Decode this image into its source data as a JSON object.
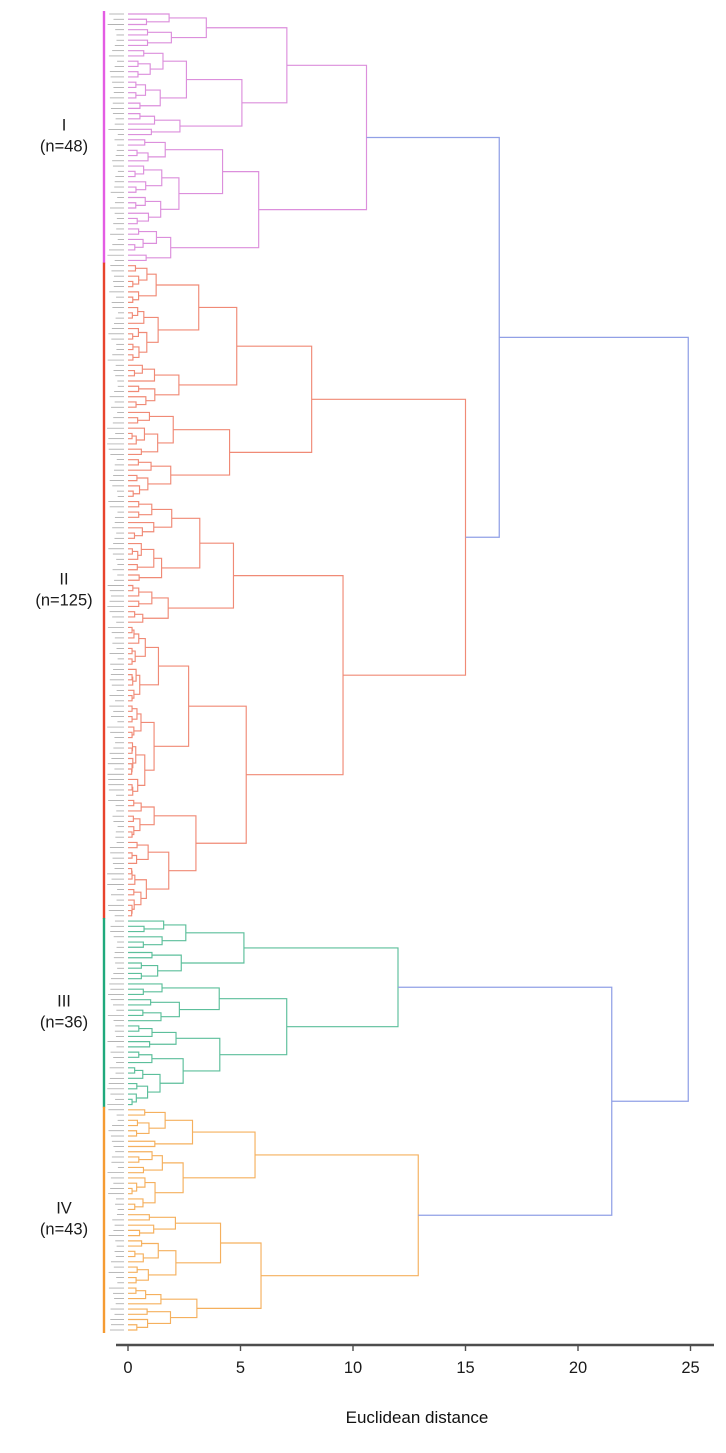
{
  "chart_data": {
    "type": "dendrogram",
    "orientation": "horizontal, leaves on left edge, root on right",
    "title": "",
    "xlabel": "Euclidean distance",
    "xlim": [
      0,
      25
    ],
    "x_ticks": [
      0,
      5,
      10,
      15,
      20,
      25
    ],
    "grid": false,
    "total_leaves": 252,
    "leaf_labels_legible": false,
    "axis_color": "#4d4d4d",
    "tick_label_color": "#1a1a1a",
    "leaf_label_color": "#9a9a9a",
    "link_color_above_threshold": "#91a0e6",
    "clusters": [
      {
        "label": "I",
        "count_label": "(n=48)",
        "n": 48,
        "line_color": "#dc8fdc",
        "bar_color": "#e35ce3",
        "root_distance": 10.6
      },
      {
        "label": "II",
        "count_label": "(n=125)",
        "n": 125,
        "line_color": "#f08a76",
        "bar_color": "#e8432c",
        "root_distance": 15.0
      },
      {
        "label": "III",
        "count_label": "(n=36)",
        "n": 36,
        "line_color": "#5cbf9b",
        "bar_color": "#1fa97c",
        "root_distance": 12.0
      },
      {
        "label": "IV",
        "count_label": "(n=43)",
        "n": 43,
        "line_color": "#f5b05e",
        "bar_color": "#f59b32",
        "root_distance": 12.9
      }
    ],
    "merges": [
      {
        "join": [
          "I",
          "II"
        ],
        "distance": 16.5
      },
      {
        "join": [
          "III",
          "IV"
        ],
        "distance": 21.5
      },
      {
        "join": [
          "I+II",
          "III+IV"
        ],
        "distance": 24.9
      }
    ]
  }
}
